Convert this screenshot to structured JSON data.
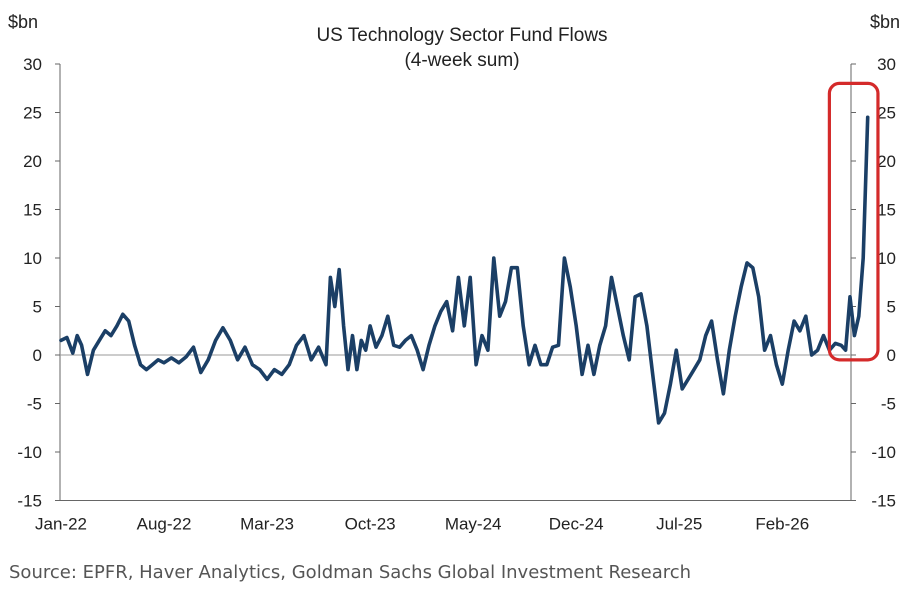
{
  "chart_data": {
    "type": "line",
    "title": "US Technology  Sector Fund Flows",
    "subtitle": "(4-week sum)",
    "y_unit_left": "$bn",
    "y_unit_right": "$bn",
    "ylim": [
      -15,
      30
    ],
    "y_ticks": [
      30,
      25,
      20,
      15,
      10,
      5,
      0,
      -5,
      -10,
      -15
    ],
    "xlim": [
      0,
      56
    ],
    "x_tick_labels": [
      {
        "month_index": 0,
        "label": "Jan-22"
      },
      {
        "month_index": 7,
        "label": "Aug-22"
      },
      {
        "month_index": 14,
        "label": "Mar-23"
      },
      {
        "month_index": 21,
        "label": "Oct-23"
      },
      {
        "month_index": 28,
        "label": "May-24"
      },
      {
        "month_index": 35,
        "label": "Dec-24"
      },
      {
        "month_index": 42,
        "label": "Jul-25"
      },
      {
        "month_index": 49,
        "label": "Feb-26"
      }
    ],
    "grid": false,
    "zero_line": true,
    "series": [
      {
        "color": "#1b3f66",
        "x": [
          0,
          0.4,
          0.8,
          1.1,
          1.4,
          1.8,
          2.2,
          2.6,
          3.0,
          3.4,
          3.8,
          4.2,
          4.6,
          5.0,
          5.4,
          5.8,
          6.2,
          6.6,
          7.0,
          7.5,
          8.0,
          8.5,
          9.0,
          9.5,
          10.0,
          10.5,
          11.0,
          11.5,
          12.0,
          12.5,
          13.0,
          13.5,
          14.0,
          14.5,
          15.0,
          15.5,
          16.0,
          16.5,
          17.0,
          17.5,
          18.0,
          18.3,
          18.6,
          18.9,
          19.2,
          19.5,
          19.8,
          20.1,
          20.4,
          20.7,
          21.0,
          21.4,
          21.8,
          22.2,
          22.6,
          23.0,
          23.4,
          23.8,
          24.2,
          24.6,
          25.0,
          25.4,
          25.8,
          26.2,
          26.6,
          27.0,
          27.4,
          27.8,
          28.2,
          28.6,
          29.0,
          29.4,
          29.8,
          30.2,
          30.6,
          31.0,
          31.4,
          31.8,
          32.2,
          32.6,
          33.0,
          33.4,
          33.8,
          34.2,
          34.6,
          35.0,
          35.4,
          35.8,
          36.2,
          36.6,
          37.0,
          37.4,
          37.8,
          38.2,
          38.6,
          39.0,
          39.4,
          39.8,
          40.2,
          40.6,
          41.0,
          41.4,
          41.8,
          42.2,
          42.6,
          43.0,
          43.4,
          43.8,
          44.2,
          44.6,
          45.0,
          45.4,
          45.8,
          46.2,
          46.6,
          47.0,
          47.4,
          47.8,
          48.2,
          48.6,
          49.0,
          49.4,
          49.8,
          50.2,
          50.6,
          51.0,
          51.4,
          51.8,
          52.2,
          52.6,
          53.0,
          53.3,
          53.6,
          53.9,
          54.2,
          54.5,
          54.8
        ],
        "y": [
          1.5,
          1.8,
          0.2,
          2.0,
          1.0,
          -2.0,
          0.5,
          1.5,
          2.5,
          2.0,
          3.0,
          4.2,
          3.5,
          1.0,
          -1.0,
          -1.5,
          -1.0,
          -0.5,
          -0.8,
          -0.3,
          -0.8,
          -0.2,
          0.8,
          -1.8,
          -0.5,
          1.5,
          2.8,
          1.5,
          -0.5,
          0.8,
          -1.0,
          -1.5,
          -2.5,
          -1.5,
          -2.0,
          -1.0,
          1.0,
          2.0,
          -0.5,
          0.8,
          -1.0,
          8.0,
          5.0,
          8.8,
          3.0,
          -1.5,
          2.0,
          -1.5,
          1.5,
          0.5,
          3.0,
          0.8,
          2.0,
          4.0,
          1.0,
          0.8,
          1.5,
          2.0,
          0.5,
          -1.5,
          1.0,
          3.0,
          4.5,
          5.5,
          2.5,
          8.0,
          3.0,
          8.0,
          -1.0,
          2.0,
          0.5,
          10.0,
          4.0,
          5.5,
          9.0,
          9.0,
          3.0,
          -1.0,
          1.0,
          -1.0,
          -1.0,
          0.8,
          1.0,
          10.0,
          7.0,
          3.0,
          -2.0,
          1.0,
          -2.0,
          1.0,
          3.0,
          8.0,
          5.0,
          2.0,
          -0.5,
          6.0,
          6.3,
          3.0,
          -2.0,
          -7.0,
          -6.0,
          -3.0,
          0.5,
          -3.5,
          -2.5,
          -1.5,
          -0.5,
          2.0,
          3.5,
          -0.5,
          -4.0,
          0.5,
          4.0,
          7.0,
          9.5,
          9.0,
          6.0,
          0.5,
          2.0,
          -1.0,
          -3.0,
          0.5,
          3.5,
          2.5,
          4.0,
          0.0,
          0.5,
          2.0,
          0.5,
          1.2,
          1.0,
          0.5,
          6.0,
          2.0,
          4.0,
          10.0,
          24.5
        ]
      }
    ],
    "annotations": [
      {
        "type": "highlight-box",
        "color": "#d42a2a",
        "x_range": [
          52.2,
          55.5
        ],
        "y_range": [
          -0.5,
          28.0
        ]
      }
    ]
  },
  "footer": {
    "source": "Source: EPFR, Haver Analytics, Goldman Sachs Global Investment Research"
  }
}
